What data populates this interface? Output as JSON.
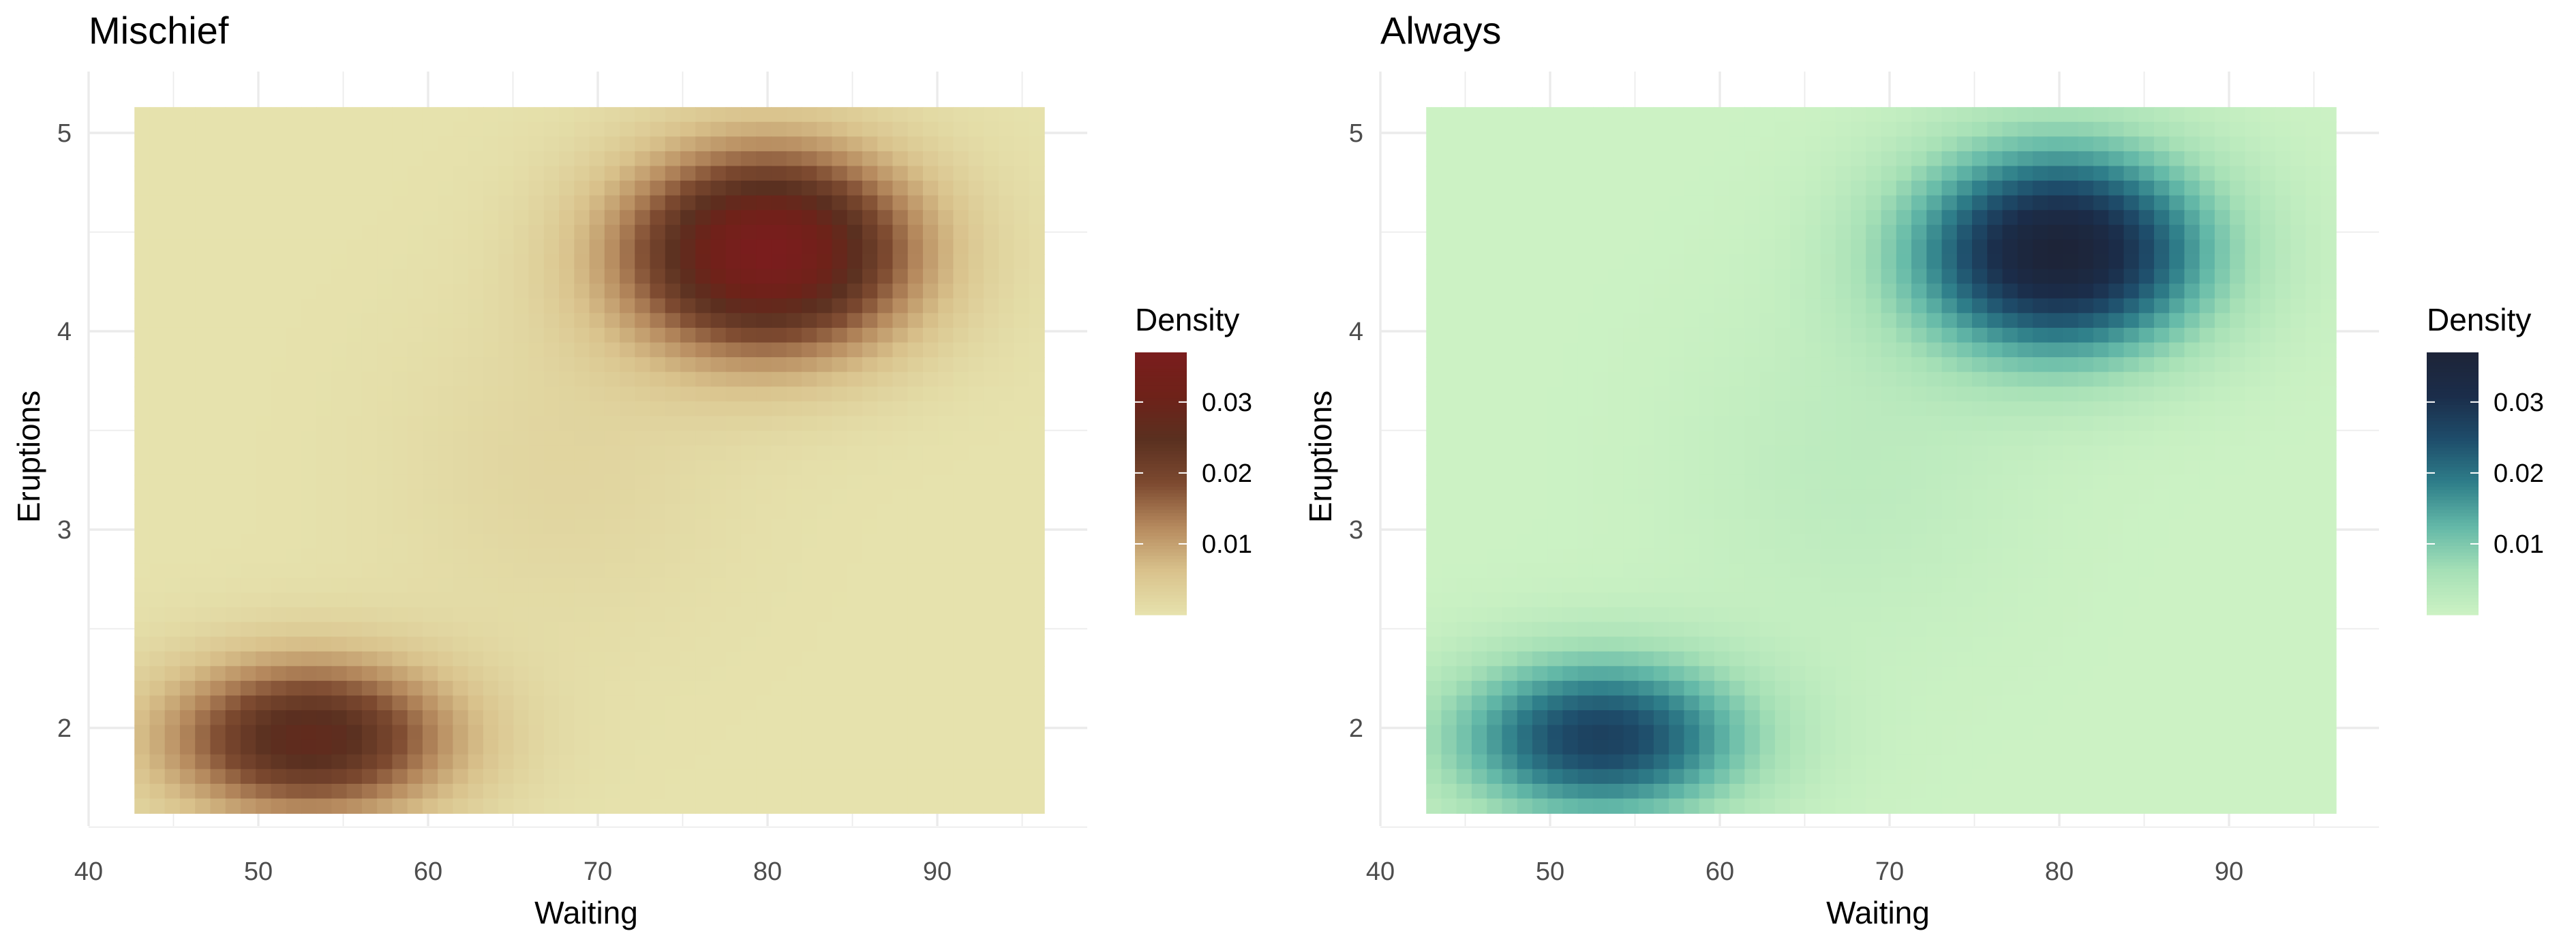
{
  "chart_data": [
    {
      "type": "heatmap",
      "title": "Mischief",
      "xlabel": "Waiting",
      "ylabel": "Eruptions",
      "x_ticks": [
        40,
        50,
        60,
        70,
        80,
        90
      ],
      "y_ticks": [
        2,
        3,
        4,
        5
      ],
      "xlim": [
        42.7,
        96.3
      ],
      "ylim": [
        1.57,
        5.13
      ],
      "grid": true,
      "legend": {
        "title": "Density",
        "placement": "right",
        "ticks": [
          "0.01",
          "0.02",
          "0.03"
        ],
        "tick_values": [
          0.01,
          0.02,
          0.03
        ],
        "range": [
          0.0,
          0.037
        ]
      },
      "colorscale": [
        "#e6e2ad",
        "#d9c28c",
        "#b68a5e",
        "#7d4a30",
        "#5a3020",
        "#6e2219",
        "#7a1d1d"
      ],
      "density_peaks": [
        {
          "waiting": 80,
          "eruptions": 4.4,
          "density": 0.037
        },
        {
          "waiting": 53,
          "eruptions": 1.95,
          "density": 0.027
        }
      ]
    },
    {
      "type": "heatmap",
      "title": "Always",
      "xlabel": "Waiting",
      "ylabel": "Eruptions",
      "x_ticks": [
        40,
        50,
        60,
        70,
        80,
        90
      ],
      "y_ticks": [
        2,
        3,
        4,
        5
      ],
      "xlim": [
        42.7,
        96.3
      ],
      "ylim": [
        1.57,
        5.13
      ],
      "grid": true,
      "legend": {
        "title": "Density",
        "placement": "right",
        "ticks": [
          "0.01",
          "0.02",
          "0.03"
        ],
        "tick_values": [
          0.01,
          0.02,
          0.03
        ],
        "range": [
          0.0,
          0.037
        ]
      },
      "colorscale": [
        "#ccf2c4",
        "#a6e0b6",
        "#64b9a8",
        "#2f7f8a",
        "#1e4d6b",
        "#1b2d4a",
        "#1d2438"
      ],
      "density_peaks": [
        {
          "waiting": 80,
          "eruptions": 4.4,
          "density": 0.037
        },
        {
          "waiting": 53,
          "eruptions": 1.95,
          "density": 0.027
        }
      ]
    }
  ]
}
